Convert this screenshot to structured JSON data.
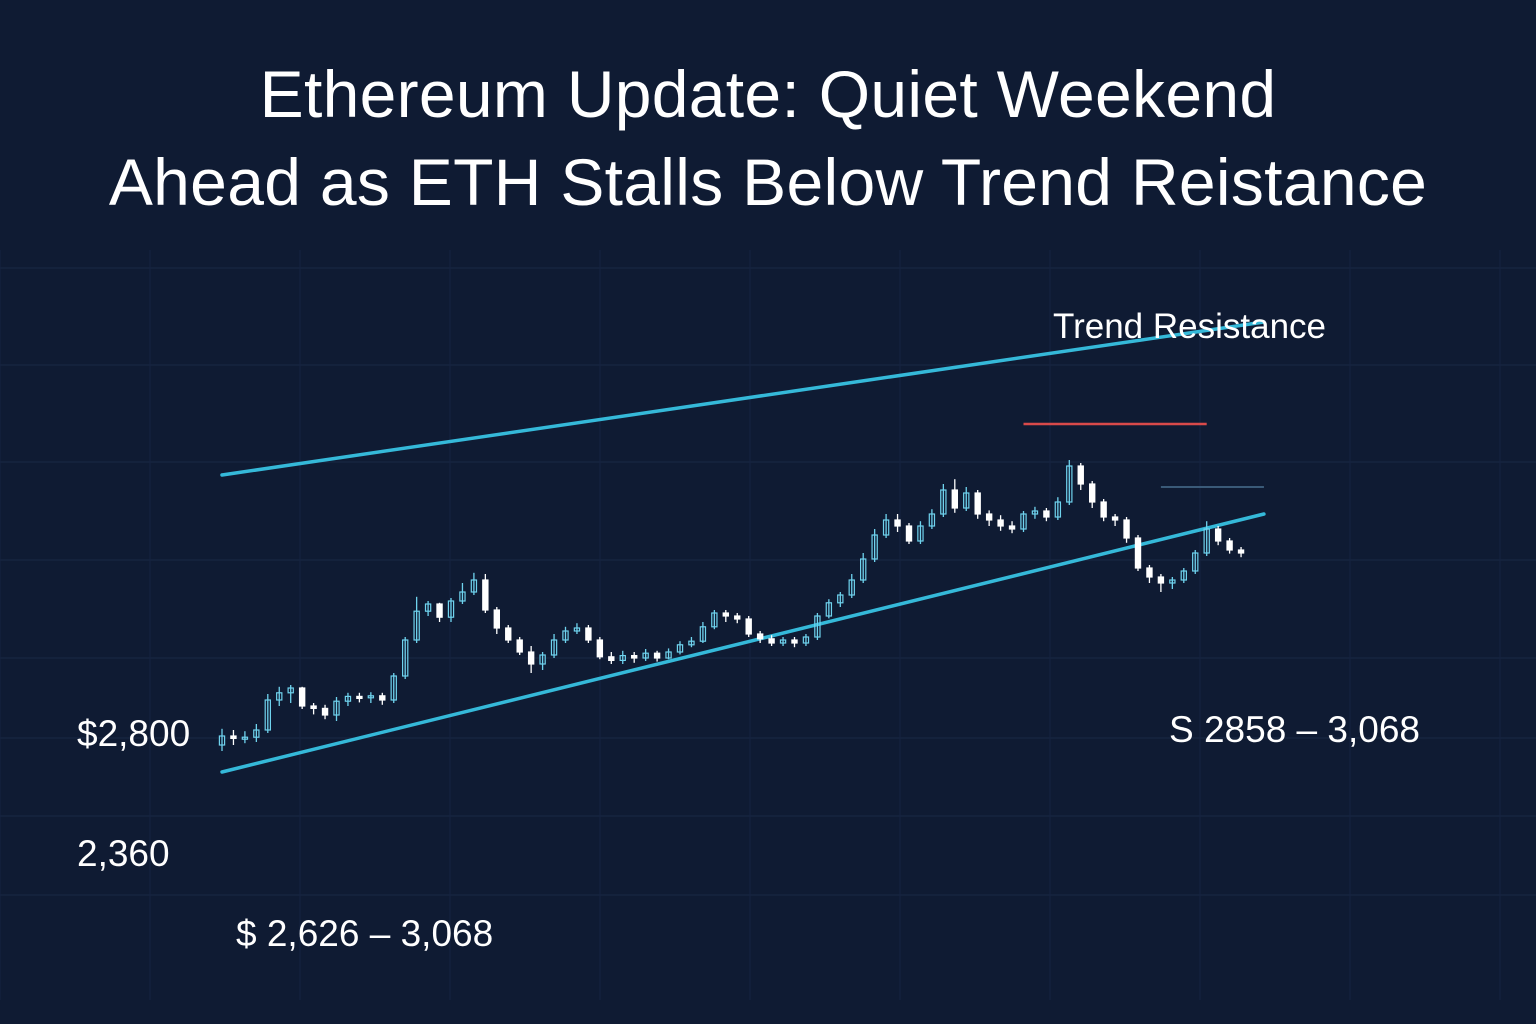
{
  "title_lines": [
    "Ethereum Update: Quiet Weekend",
    "Ahead as ETH Stalls Below Trend Reistance"
  ],
  "colors": {
    "background": "#0f1b33",
    "trendline": "#35b9d9",
    "resistance_marker": "#d94a4a",
    "candle_up": "#6fd3ee",
    "candle_down": "#ffffff",
    "text": "#ffffff"
  },
  "chart_data": {
    "type": "candlestick",
    "title": "Ethereum Update: Quiet Weekend Ahead as ETH Stalls Below Trend Reistance",
    "xlabel": "",
    "ylabel": "",
    "price_labels": [
      "$2,800",
      "2,360"
    ],
    "annotations": {
      "trend_resistance": "Trend Resistance",
      "range_left": "$ 2,626 – 3,068",
      "range_right": "S 2858 – 3,068"
    },
    "ylim": [
      2200,
      3300
    ],
    "trendlines": [
      {
        "name": "upper",
        "start": [
          0,
          3075
        ],
        "end": [
          91,
          3330
        ]
      },
      {
        "name": "lower",
        "start": [
          0,
          2580
        ],
        "end": [
          91,
          3010
        ]
      }
    ],
    "horizontal_lines": [
      {
        "price": 3160,
        "from": 70,
        "to": 86
      },
      {
        "price": 3055,
        "from": 82,
        "to": 91
      }
    ],
    "candles": [
      [
        2625,
        2640,
        2652,
        2615
      ],
      [
        2640,
        2636,
        2650,
        2625
      ],
      [
        2636,
        2638,
        2648,
        2628
      ],
      [
        2638,
        2650,
        2660,
        2630
      ],
      [
        2650,
        2700,
        2710,
        2645
      ],
      [
        2700,
        2712,
        2722,
        2690
      ],
      [
        2712,
        2720,
        2725,
        2695
      ],
      [
        2720,
        2690,
        2722,
        2685
      ],
      [
        2690,
        2686,
        2695,
        2676
      ],
      [
        2686,
        2675,
        2692,
        2668
      ],
      [
        2675,
        2698,
        2705,
        2665
      ],
      [
        2698,
        2706,
        2712,
        2690
      ],
      [
        2706,
        2704,
        2712,
        2696
      ],
      [
        2704,
        2707,
        2713,
        2695
      ],
      [
        2707,
        2700,
        2712,
        2692
      ],
      [
        2700,
        2740,
        2745,
        2695
      ],
      [
        2740,
        2800,
        2805,
        2735
      ],
      [
        2800,
        2848,
        2872,
        2795
      ],
      [
        2848,
        2860,
        2865,
        2840
      ],
      [
        2860,
        2838,
        2862,
        2830
      ],
      [
        2838,
        2865,
        2870,
        2830
      ],
      [
        2865,
        2880,
        2895,
        2860
      ],
      [
        2880,
        2900,
        2912,
        2875
      ],
      [
        2900,
        2850,
        2910,
        2845
      ],
      [
        2850,
        2820,
        2855,
        2810
      ],
      [
        2820,
        2800,
        2825,
        2795
      ],
      [
        2800,
        2780,
        2805,
        2775
      ],
      [
        2780,
        2760,
        2790,
        2745
      ],
      [
        2760,
        2775,
        2780,
        2750
      ],
      [
        2775,
        2800,
        2810,
        2770
      ],
      [
        2800,
        2815,
        2822,
        2795
      ],
      [
        2815,
        2820,
        2828,
        2810
      ],
      [
        2820,
        2800,
        2825,
        2795
      ],
      [
        2800,
        2772,
        2805,
        2768
      ],
      [
        2772,
        2766,
        2780,
        2760
      ],
      [
        2766,
        2774,
        2782,
        2760
      ],
      [
        2774,
        2770,
        2780,
        2762
      ],
      [
        2770,
        2778,
        2785,
        2765
      ],
      [
        2778,
        2770,
        2782,
        2764
      ],
      [
        2770,
        2780,
        2786,
        2768
      ],
      [
        2780,
        2792,
        2798,
        2776
      ],
      [
        2792,
        2798,
        2805,
        2788
      ],
      [
        2798,
        2822,
        2830,
        2795
      ],
      [
        2822,
        2845,
        2850,
        2818
      ],
      [
        2845,
        2840,
        2850,
        2830
      ],
      [
        2840,
        2835,
        2845,
        2828
      ],
      [
        2835,
        2810,
        2840,
        2805
      ],
      [
        2810,
        2802,
        2815,
        2795
      ],
      [
        2802,
        2795,
        2808,
        2790
      ],
      [
        2795,
        2800,
        2805,
        2790
      ],
      [
        2800,
        2795,
        2805,
        2788
      ],
      [
        2795,
        2805,
        2810,
        2790
      ],
      [
        2805,
        2840,
        2845,
        2800
      ],
      [
        2840,
        2862,
        2868,
        2836
      ],
      [
        2862,
        2875,
        2880,
        2855
      ],
      [
        2875,
        2900,
        2910,
        2870
      ],
      [
        2900,
        2935,
        2945,
        2895
      ],
      [
        2935,
        2975,
        2985,
        2930
      ],
      [
        2975,
        3000,
        3010,
        2970
      ],
      [
        3000,
        2990,
        3010,
        2980
      ],
      [
        2990,
        2965,
        2995,
        2960
      ],
      [
        2965,
        2990,
        2998,
        2960
      ],
      [
        2990,
        3010,
        3018,
        2985
      ],
      [
        3010,
        3050,
        3060,
        3005
      ],
      [
        3050,
        3020,
        3068,
        3012
      ],
      [
        3020,
        3045,
        3055,
        3015
      ],
      [
        3045,
        3010,
        3050,
        3002
      ],
      [
        3010,
        3000,
        3016,
        2990
      ],
      [
        3000,
        2990,
        3008,
        2982
      ],
      [
        2990,
        2985,
        2998,
        2978
      ],
      [
        2985,
        3010,
        3015,
        2980
      ],
      [
        3010,
        3015,
        3022,
        3002
      ],
      [
        3015,
        3005,
        3020,
        2998
      ],
      [
        3005,
        3030,
        3038,
        3000
      ],
      [
        3030,
        3090,
        3100,
        3025
      ],
      [
        3090,
        3060,
        3095,
        3050
      ],
      [
        3060,
        3030,
        3065,
        3020
      ],
      [
        3030,
        3005,
        3035,
        2998
      ],
      [
        3005,
        3000,
        3010,
        2990
      ],
      [
        3000,
        2970,
        3005,
        2962
      ],
      [
        2970,
        2920,
        2975,
        2915
      ],
      [
        2920,
        2905,
        2925,
        2895
      ],
      [
        2905,
        2895,
        2910,
        2880
      ],
      [
        2895,
        2900,
        2905,
        2885
      ],
      [
        2900,
        2915,
        2920,
        2895
      ],
      [
        2915,
        2945,
        2950,
        2910
      ],
      [
        2945,
        2985,
        2998,
        2940
      ],
      [
        2985,
        2965,
        2990,
        2958
      ],
      [
        2965,
        2950,
        2970,
        2944
      ],
      [
        2950,
        2945,
        2955,
        2938
      ]
    ]
  }
}
